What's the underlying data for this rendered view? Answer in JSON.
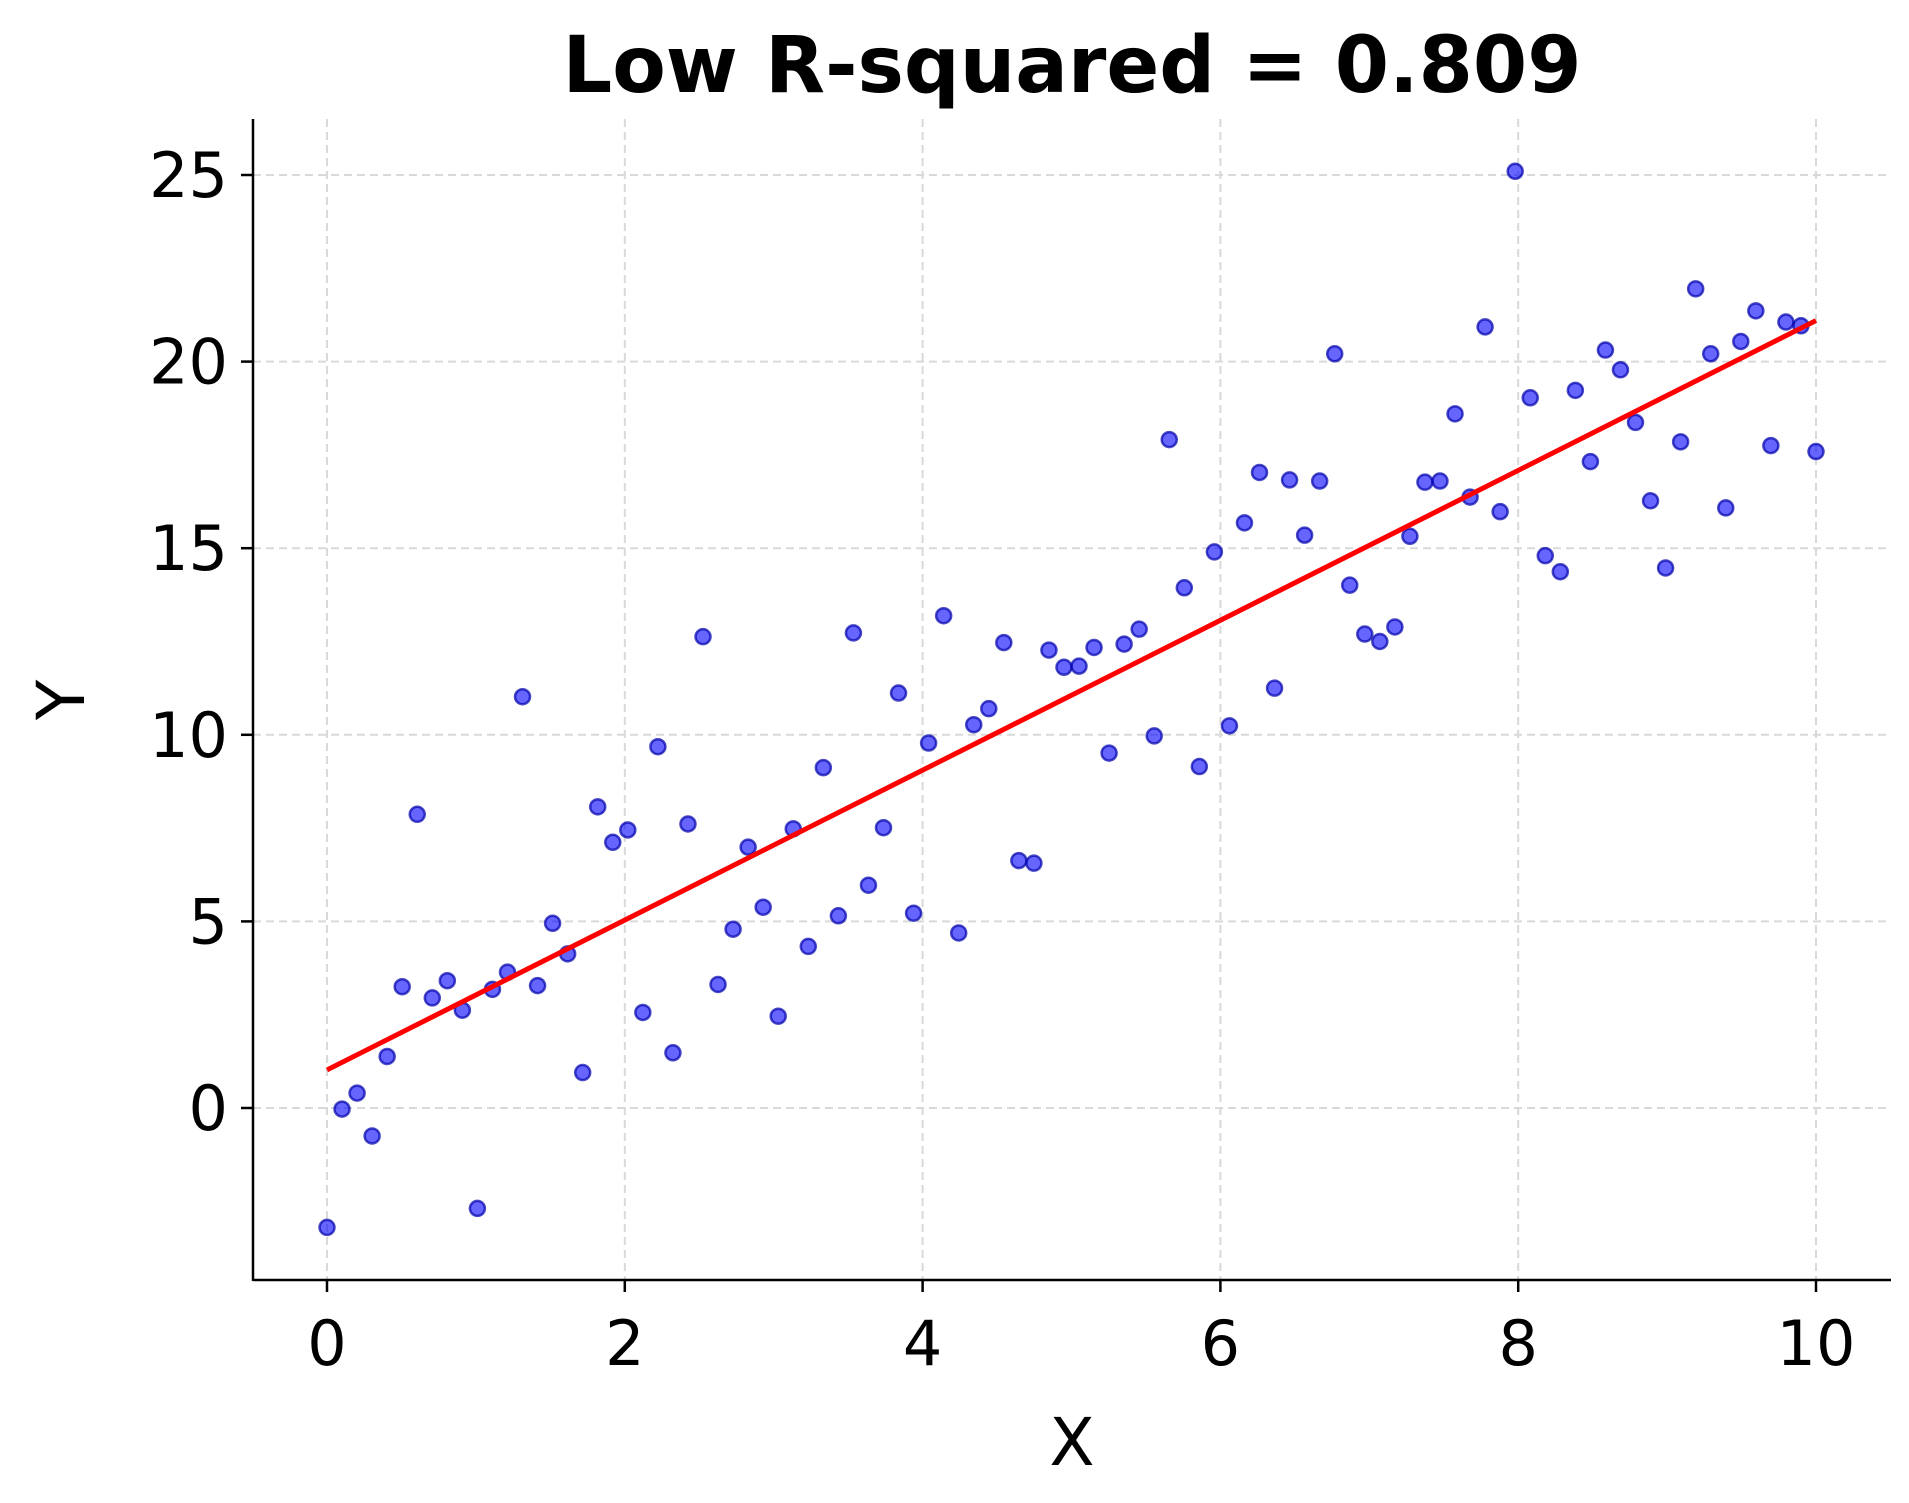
{
  "chart_data": {
    "type": "scatter",
    "title": "Low R-squared = 0.809",
    "xlabel": "X",
    "ylabel": "Y",
    "xlim": [
      -0.5,
      10.5
    ],
    "ylim": [
      -4.6,
      26.5
    ],
    "xticks": [
      0,
      2,
      4,
      6,
      8,
      10
    ],
    "yticks": [
      0,
      5,
      10,
      15,
      20,
      25
    ],
    "grid": true,
    "legend": "none",
    "colors": {
      "points": "#0000ff",
      "fit_line": "#ff0000",
      "grid": "#d9d9d9"
    },
    "series": [
      {
        "type": "scatter",
        "x_range": [
          0,
          10
        ],
        "y": [
          -3.2,
          -0.03,
          0.4,
          -0.75,
          1.38,
          3.25,
          7.87,
          2.95,
          3.41,
          2.62,
          -2.69,
          3.18,
          3.64,
          11.02,
          3.28,
          4.95,
          4.13,
          0.95,
          8.07,
          7.12,
          7.45,
          2.56,
          9.68,
          1.48,
          7.61,
          12.63,
          3.31,
          4.79,
          6.99,
          5.38,
          2.46,
          7.48,
          4.33,
          9.12,
          5.15,
          12.73,
          5.97,
          7.51,
          11.12,
          5.22,
          9.78,
          13.19,
          4.69,
          10.27,
          10.7,
          12.47,
          6.63,
          6.56,
          12.27,
          11.81,
          11.84,
          12.34,
          9.51,
          12.43,
          12.83,
          9.97,
          17.91,
          13.94,
          9.15,
          14.9,
          10.24,
          15.68,
          17.03,
          11.25,
          16.83,
          15.35,
          16.8,
          20.21,
          14.01,
          12.7,
          12.5,
          12.89,
          15.32,
          16.77,
          16.8,
          18.6,
          16.37,
          20.93,
          15.98,
          25.1,
          19.03,
          14.8,
          14.37,
          19.23,
          17.32,
          20.31,
          19.78,
          18.37,
          16.27,
          14.47,
          17.85,
          21.95,
          20.21,
          16.08,
          20.54,
          21.36,
          17.75,
          21.06,
          20.96,
          17.59
        ]
      },
      {
        "type": "line",
        "x": [
          0,
          10
        ],
        "y": [
          1.02,
          21.1
        ]
      }
    ]
  }
}
